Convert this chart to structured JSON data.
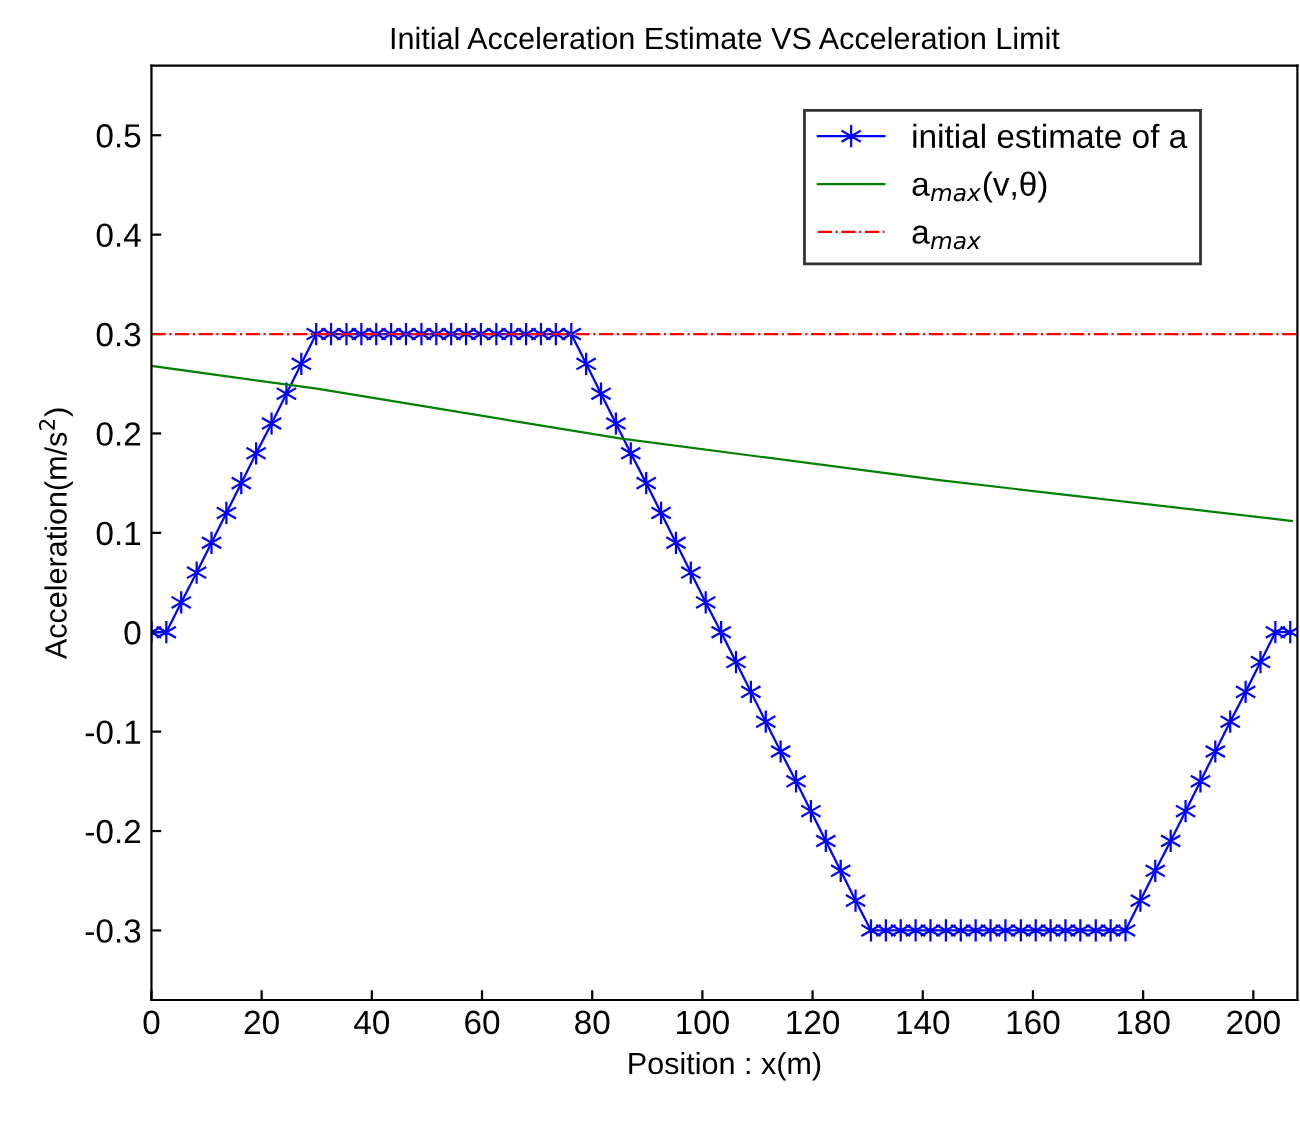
{
  "chart_data": {
    "type": "line",
    "title": "Initial Acceleration Estimate VS Acceleration Limit",
    "xlabel": "Position : x(m)",
    "ylabel": "Acceleration(m/s$^{2}$)",
    "series": [
      {
        "name": "initial estimate of a",
        "color": "#0000ff",
        "marker": "cross",
        "x": [
          0,
          2.7,
          5.4,
          8.2,
          10.9,
          13.6,
          16.3,
          19.0,
          21.8,
          24.5,
          27.2,
          29.9,
          32.6,
          35.4,
          38.1,
          40.8,
          43.5,
          46.2,
          49.0,
          51.7,
          54.4,
          57.1,
          59.8,
          62.6,
          65.3,
          68.0,
          70.7,
          73.4,
          76.2,
          78.9,
          81.6,
          84.3,
          87.0,
          89.8,
          92.5,
          95.2,
          97.9,
          100.6,
          103.4,
          106.1,
          108.8,
          111.5,
          114.2,
          117.0,
          119.7,
          122.4,
          125.1,
          127.8,
          130.6,
          133.3,
          136.0,
          138.7,
          141.4,
          144.2,
          146.9,
          149.6,
          152.3,
          155.0,
          157.8,
          160.5,
          163.2,
          165.9,
          168.6,
          171.4,
          174.1,
          176.8,
          179.5,
          182.2,
          185.0,
          187.7,
          190.4,
          193.1,
          195.8,
          198.6,
          201.3,
          204.0,
          206.7
        ],
        "values": [
          0,
          0,
          0.03,
          0.06,
          0.09,
          0.12,
          0.15,
          0.18,
          0.21,
          0.24,
          0.27,
          0.3,
          0.3,
          0.3,
          0.3,
          0.3,
          0.3,
          0.3,
          0.3,
          0.3,
          0.3,
          0.3,
          0.3,
          0.3,
          0.3,
          0.3,
          0.3,
          0.3,
          0.3,
          0.27,
          0.24,
          0.21,
          0.18,
          0.15,
          0.12,
          0.09,
          0.06,
          0.03,
          0,
          -0.03,
          -0.06,
          -0.09,
          -0.12,
          -0.15,
          -0.18,
          -0.21,
          -0.24,
          -0.27,
          -0.3,
          -0.3,
          -0.3,
          -0.3,
          -0.3,
          -0.3,
          -0.3,
          -0.3,
          -0.3,
          -0.3,
          -0.3,
          -0.3,
          -0.3,
          -0.3,
          -0.3,
          -0.3,
          -0.3,
          -0.3,
          -0.27,
          -0.24,
          -0.21,
          -0.18,
          -0.15,
          -0.12,
          -0.09,
          -0.06,
          -0.03,
          0,
          0
        ]
      },
      {
        "name": "a$_{max}$(v,θ)",
        "color": "#008000",
        "marker": "none",
        "x": [
          0,
          30,
          85,
          143,
          207
        ],
        "values": [
          0.268,
          0.245,
          0.195,
          0.153,
          0.112
        ]
      }
    ],
    "ref_lines": [
      {
        "axis": "y",
        "value": 0.3,
        "label": "a$_{max}$",
        "color": "#ff0000",
        "line_style": "dashdot"
      }
    ],
    "xlim": [
      0,
      208
    ],
    "ylim": [
      -0.37,
      0.57
    ],
    "xticks": [
      0,
      20,
      40,
      60,
      80,
      100,
      120,
      140,
      160,
      180,
      200
    ],
    "yticks": [
      -0.3,
      -0.2,
      -0.1,
      0,
      0.1,
      0.2,
      0.3,
      0.4,
      0.5
    ],
    "grid": false,
    "legend": "top right"
  }
}
